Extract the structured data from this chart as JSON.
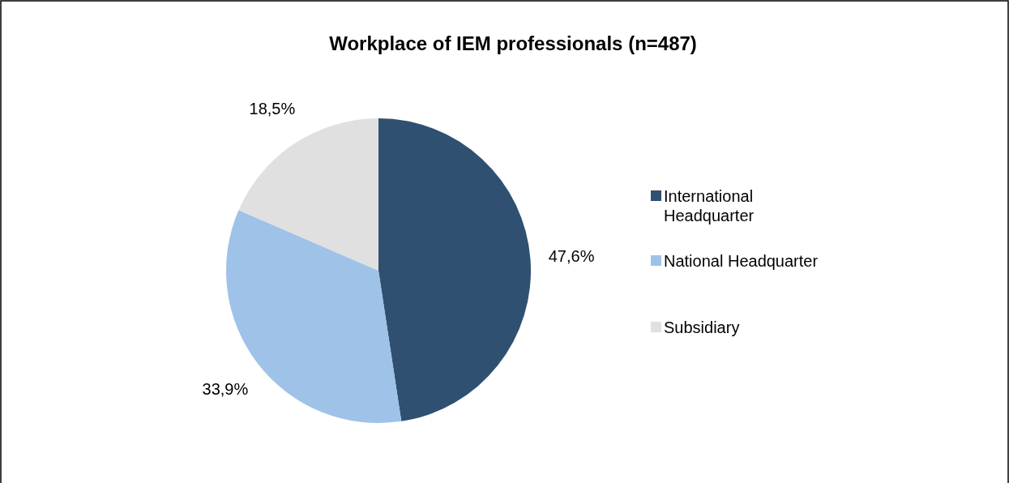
{
  "chart_data": {
    "type": "pie",
    "title": "Workplace of IEM professionals (n=487)",
    "categories": [
      "International Headquarter",
      "National Headquarter",
      "Subsidiary"
    ],
    "values": [
      47.6,
      33.9,
      18.5
    ],
    "colors": [
      "#2f5070",
      "#9fc2e8",
      "#e0e0e0"
    ],
    "value_labels": [
      "47,6%",
      "33,9%",
      "18,5%"
    ],
    "legend": "right"
  }
}
